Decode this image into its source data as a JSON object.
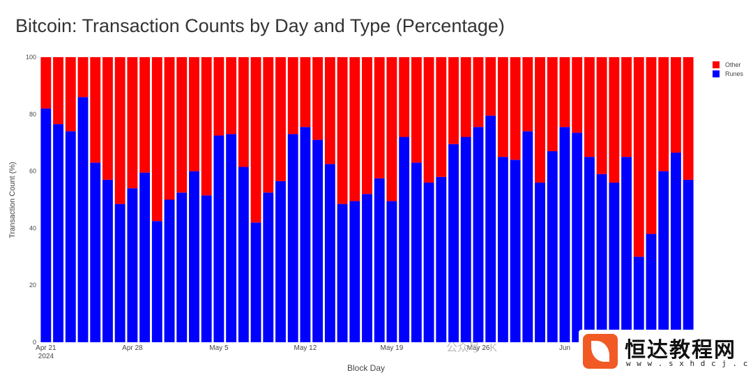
{
  "chart_data": {
    "type": "bar",
    "stacked": true,
    "title": "Bitcoin: Transaction Counts by Day and Type (Percentage)",
    "xlabel": "Block Day",
    "ylabel": "Transaction Count (%)",
    "ylim": [
      0,
      100
    ],
    "yticks": [
      "0",
      "20",
      "40",
      "60",
      "80",
      "100"
    ],
    "x_tick_labels": [
      {
        "day": 0,
        "label": "Apr 21",
        "sub": "2024"
      },
      {
        "day": 7,
        "label": "Apr 28"
      },
      {
        "day": 14,
        "label": "May 5"
      },
      {
        "day": 21,
        "label": "May 12"
      },
      {
        "day": 28,
        "label": "May 19"
      },
      {
        "day": 35,
        "label": "May 26"
      },
      {
        "day": 42,
        "label": "Jun"
      }
    ],
    "legend_position": "top-right",
    "series": [
      {
        "name": "Other",
        "color": "#ff0000",
        "values": [
          18,
          23.5,
          26,
          14,
          37,
          43,
          51.5,
          46,
          40.5,
          57.5,
          50,
          47.5,
          40,
          48.5,
          27.5,
          27,
          38.5,
          58,
          47.5,
          43.5,
          27,
          24.5,
          29,
          37.5,
          51.5,
          50.5,
          48,
          42.5,
          50.5,
          28,
          37,
          44,
          42,
          30.5,
          28,
          24.5,
          20.5,
          35,
          36,
          26,
          44,
          33,
          24.5,
          26.5,
          35,
          41,
          44,
          35,
          70,
          62,
          40,
          33.5,
          43
        ]
      },
      {
        "name": "Runes",
        "color": "#0000ff",
        "values": [
          82,
          76.5,
          74,
          86,
          63,
          57,
          48.5,
          54,
          59.5,
          42.5,
          50,
          52.5,
          60,
          51.5,
          72.5,
          73,
          61.5,
          42,
          52.5,
          56.5,
          73,
          75.5,
          71,
          62.5,
          48.5,
          49.5,
          52,
          57.5,
          49.5,
          72,
          63,
          56,
          58,
          69.5,
          72,
          75.5,
          79.5,
          65,
          64,
          74,
          56,
          67,
          75.5,
          73.5,
          65,
          59,
          56,
          65,
          30,
          38,
          60,
          66.5,
          57
        ]
      }
    ]
  },
  "watermark": {
    "name": "恒达教程网",
    "url": "w w w . s x h d c j . c o m",
    "small": "公众号 · K"
  }
}
